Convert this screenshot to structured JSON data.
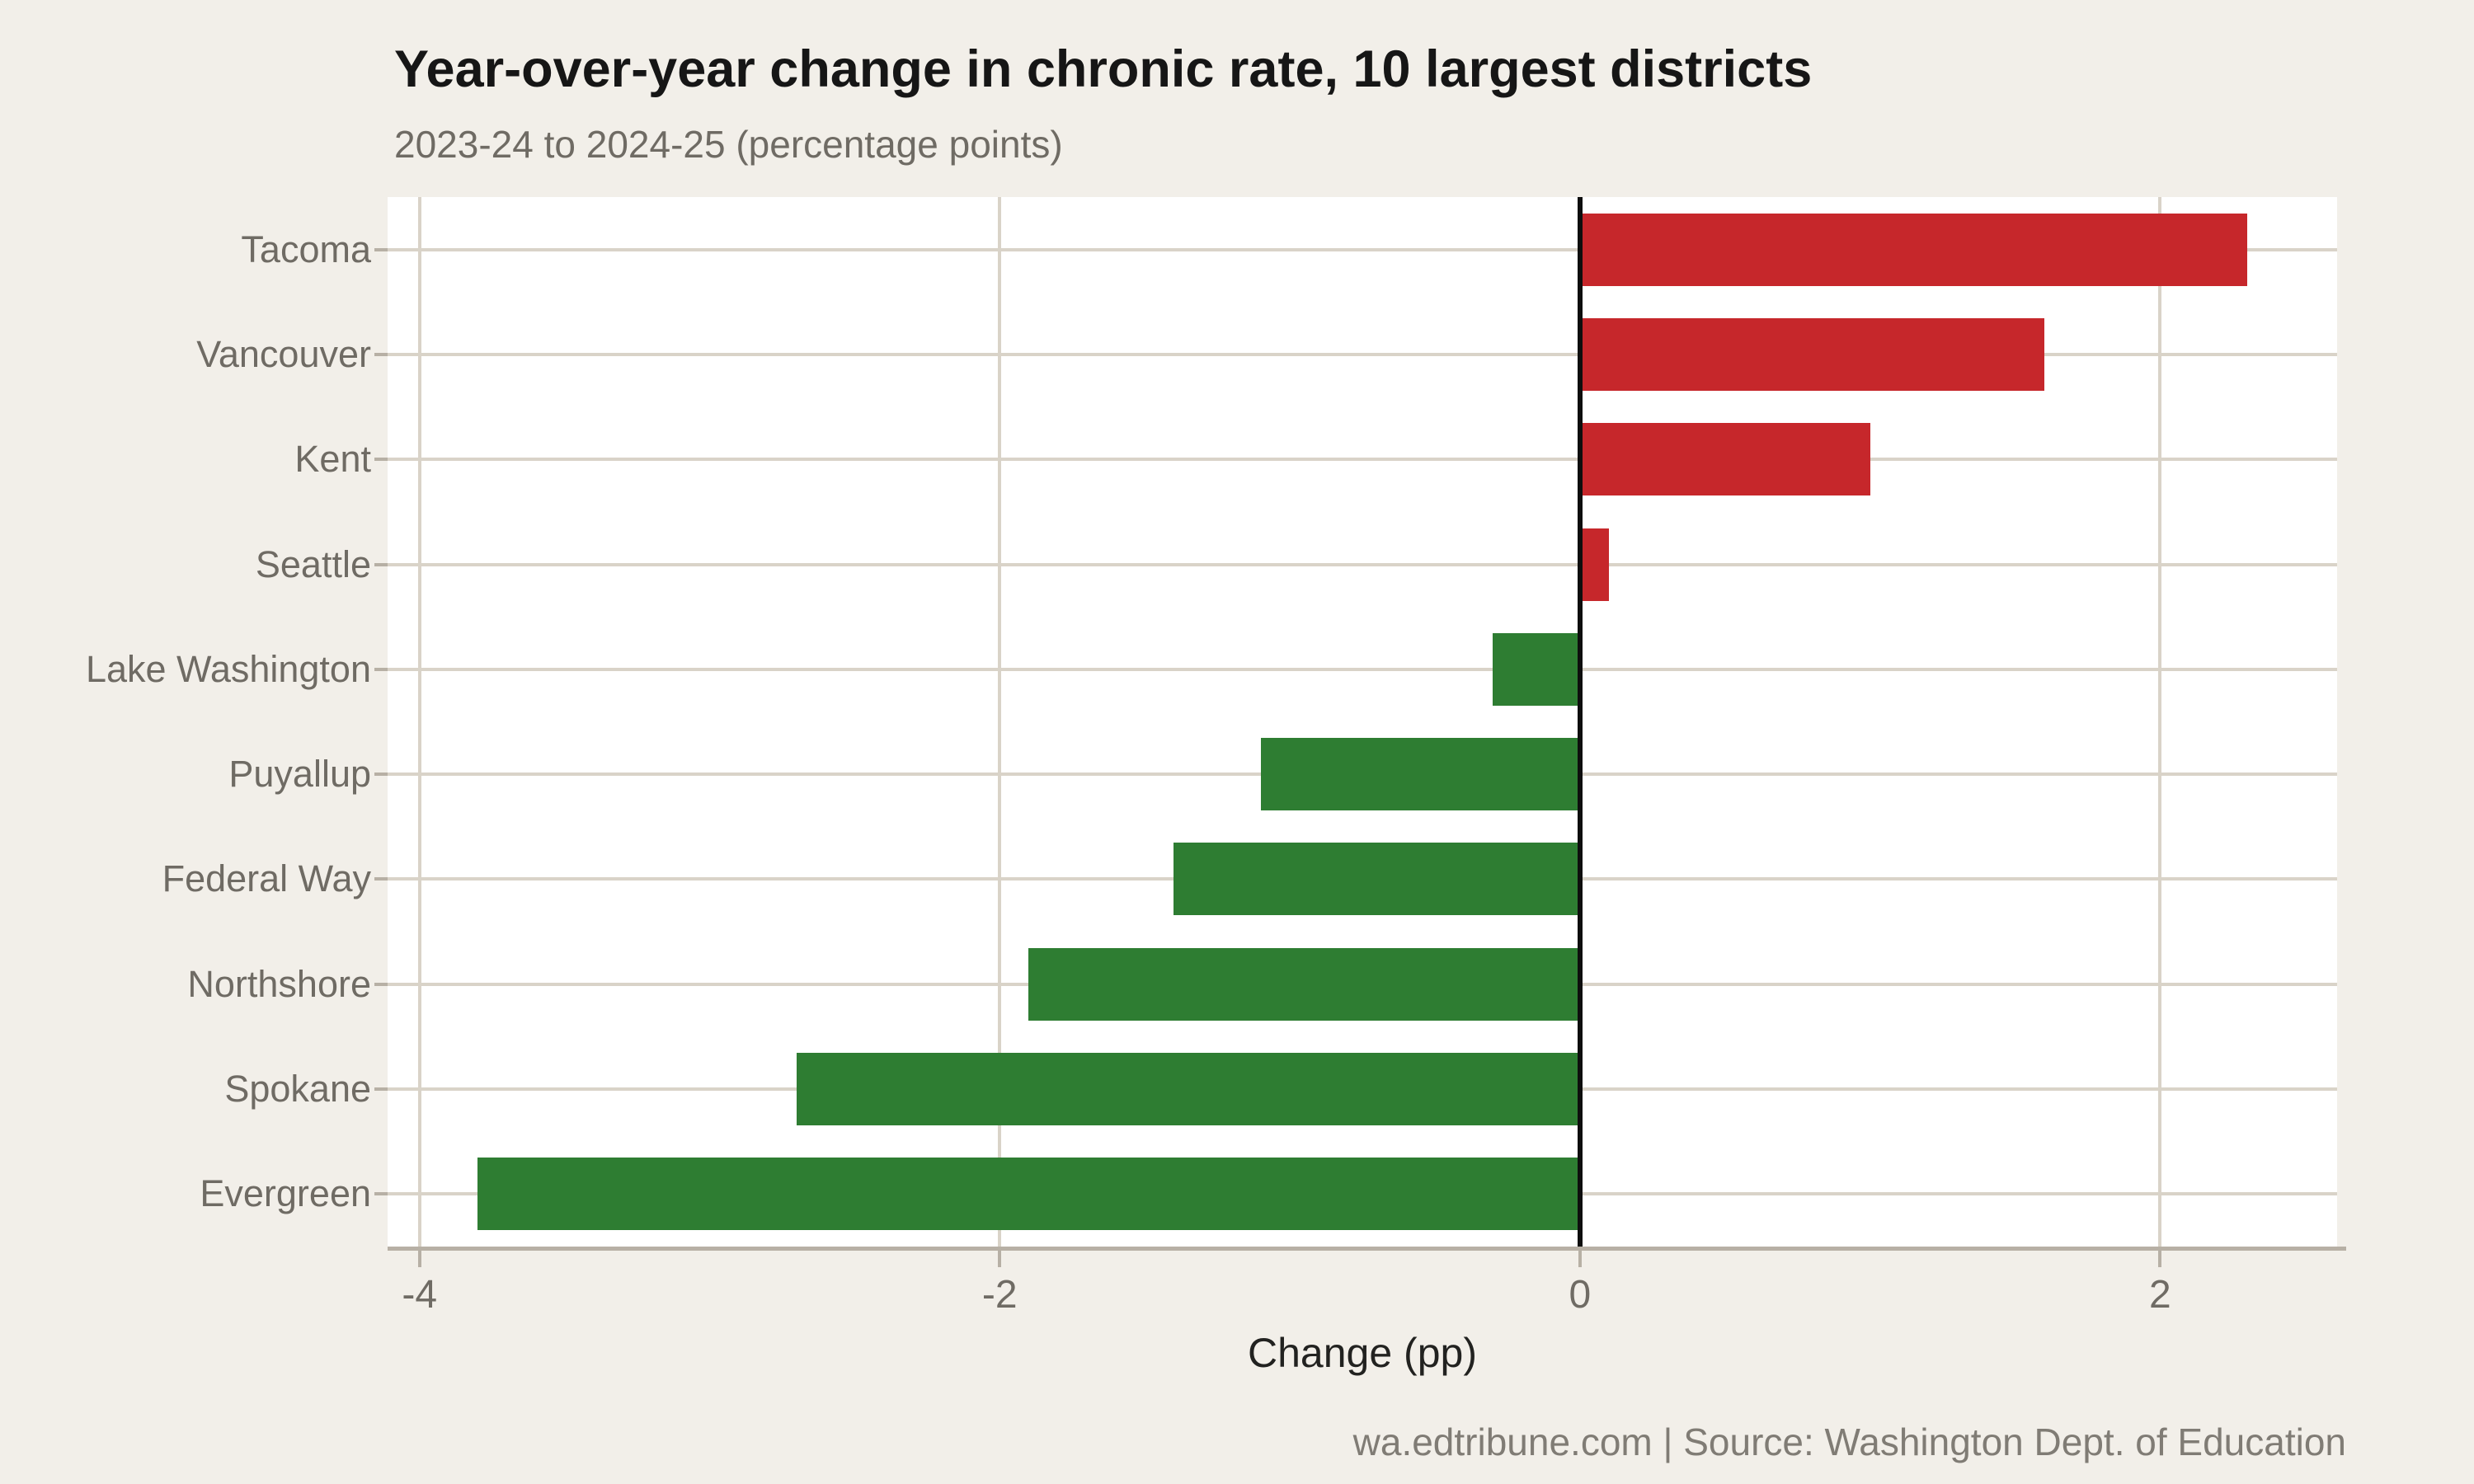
{
  "chart_data": {
    "type": "bar",
    "orientation": "horizontal",
    "title": "Year-over-year change in chronic rate, 10 largest districts",
    "subtitle": "2023-24 to 2024-25 (percentage points)",
    "xlabel": "Change (pp)",
    "categories": [
      "Tacoma",
      "Vancouver",
      "Kent",
      "Seattle",
      "Lake Washington",
      "Puyallup",
      "Federal Way",
      "Northshore",
      "Spokane",
      "Evergreen"
    ],
    "values": [
      2.3,
      1.6,
      1.0,
      0.1,
      -0.3,
      -1.1,
      -1.4,
      -1.9,
      -2.7,
      -3.8
    ],
    "xticks": [
      -4,
      -2,
      0,
      2
    ],
    "xtick_labels": [
      "-4",
      "-2",
      "0",
      "2"
    ],
    "xlim": [
      -4.11,
      2.61
    ],
    "grid": true,
    "legend": "none",
    "source": "wa.edtribune.com | Source: Washington Dept. of Education",
    "colors": {
      "positive_bar": "#c6272b",
      "negative_bar": "#2e7d32",
      "background": "#f2efe9",
      "plot_background": "#ffffff",
      "gridline": "#d9d3c8",
      "axis_line": "#b7b0a5",
      "zero_line": "#0e0e0e",
      "title_text": "#161616",
      "label_text": "#6f6b64",
      "source_text": "#807c75"
    }
  }
}
